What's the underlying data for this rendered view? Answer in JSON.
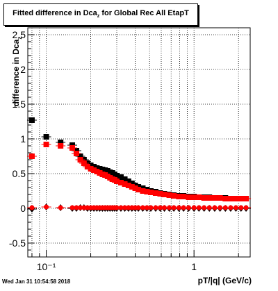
{
  "chart_data": {
    "type": "scatter",
    "title": "Fitted difference in Dca",
    "title_subscript": "z",
    "title_suffix": " for Global Rec All EtapT",
    "xlabel": "pT/|q| (GeV/c)",
    "ylabel": "difference in Dca",
    "ylabel_subscript": "z",
    "x_scale": "log",
    "xlim": [
      0.075,
      2.4
    ],
    "ylim": [
      -0.7,
      2.6
    ],
    "grid": true,
    "x_tick_labels": [
      "10⁻¹",
      "1"
    ],
    "y_tick_labels": [
      "-0.5",
      "0",
      "0.5",
      "1",
      "1.5",
      "2",
      "2.5"
    ],
    "y_ticks": [
      -0.5,
      0,
      0.5,
      1,
      1.5,
      2,
      2.5
    ],
    "colors": {
      "black": "#000000",
      "red": "#ff0000"
    },
    "x": [
      0.08,
      0.1,
      0.125,
      0.15,
      0.16,
      0.17,
      0.18,
      0.19,
      0.2,
      0.21,
      0.22,
      0.23,
      0.24,
      0.25,
      0.26,
      0.27,
      0.28,
      0.29,
      0.3,
      0.32,
      0.34,
      0.36,
      0.38,
      0.4,
      0.42,
      0.45,
      0.48,
      0.51,
      0.55,
      0.59,
      0.63,
      0.68,
      0.73,
      0.79,
      0.85,
      0.92,
      1.0,
      1.08,
      1.17,
      1.27,
      1.38,
      1.5,
      1.63,
      1.77,
      1.92,
      2.08,
      2.25
    ],
    "series": [
      {
        "color": "#000000",
        "marker": "square",
        "values": [
          1.27,
          1.03,
          0.95,
          0.91,
          0.83,
          0.75,
          0.7,
          0.65,
          0.62,
          0.6,
          0.58,
          0.57,
          0.56,
          0.55,
          0.54,
          0.52,
          0.51,
          0.49,
          0.47,
          0.45,
          0.42,
          0.39,
          0.36,
          0.33,
          0.31,
          0.29,
          0.27,
          0.25,
          0.24,
          0.22,
          0.21,
          0.2,
          0.19,
          0.18,
          0.18,
          0.17,
          0.17,
          0.16,
          0.16,
          0.16,
          0.15,
          0.15,
          0.15,
          0.14,
          0.14,
          0.14,
          0.14
        ]
      },
      {
        "color": "#ff0000",
        "marker": "square",
        "values": [
          0.75,
          0.92,
          0.9,
          0.87,
          0.79,
          0.7,
          0.65,
          0.6,
          0.57,
          0.55,
          0.53,
          0.51,
          0.49,
          0.48,
          0.46,
          0.44,
          0.42,
          0.41,
          0.39,
          0.37,
          0.35,
          0.33,
          0.31,
          0.29,
          0.27,
          0.25,
          0.24,
          0.23,
          0.22,
          0.21,
          0.2,
          0.19,
          0.18,
          0.17,
          0.17,
          0.16,
          0.16,
          0.16,
          0.15,
          0.15,
          0.15,
          0.15,
          0.14,
          0.14,
          0.14,
          0.14,
          0.14
        ]
      },
      {
        "color": "#000000",
        "marker": "diamond",
        "values": [
          -0.01,
          0.02,
          0.01,
          0.0,
          0.0,
          0.01,
          0.01,
          0.0,
          0.0,
          0.0,
          0.0,
          0.0,
          0.0,
          0.0,
          0.0,
          0.0,
          0.0,
          0.0,
          0.0,
          0.0,
          0.0,
          0.0,
          0.0,
          0.0,
          0.0,
          0.0,
          0.0,
          0.0,
          0.0,
          0.0,
          0.0,
          0.0,
          0.0,
          0.0,
          0.0,
          0.0,
          0.0,
          0.0,
          0.0,
          0.0,
          0.0,
          0.0,
          0.0,
          0.0,
          0.0,
          0.0,
          0.0
        ]
      },
      {
        "color": "#ff0000",
        "marker": "circle",
        "values": [
          0.01,
          0.02,
          0.01,
          0.01,
          0.01,
          0.01,
          0.01,
          0.01,
          0.01,
          0.01,
          0.01,
          0.01,
          0.01,
          0.01,
          0.01,
          0.01,
          0.01,
          0.01,
          0.01,
          0.01,
          0.01,
          0.01,
          0.01,
          0.01,
          0.01,
          0.01,
          0.01,
          0.01,
          0.01,
          0.01,
          0.01,
          0.01,
          0.01,
          0.01,
          0.01,
          0.01,
          0.01,
          0.01,
          0.01,
          0.01,
          0.01,
          0.01,
          0.01,
          0.01,
          0.01,
          0.01,
          0.01
        ]
      }
    ]
  },
  "footer": {
    "timestamp": "Wed Jan 31 10:54:58 2018"
  }
}
